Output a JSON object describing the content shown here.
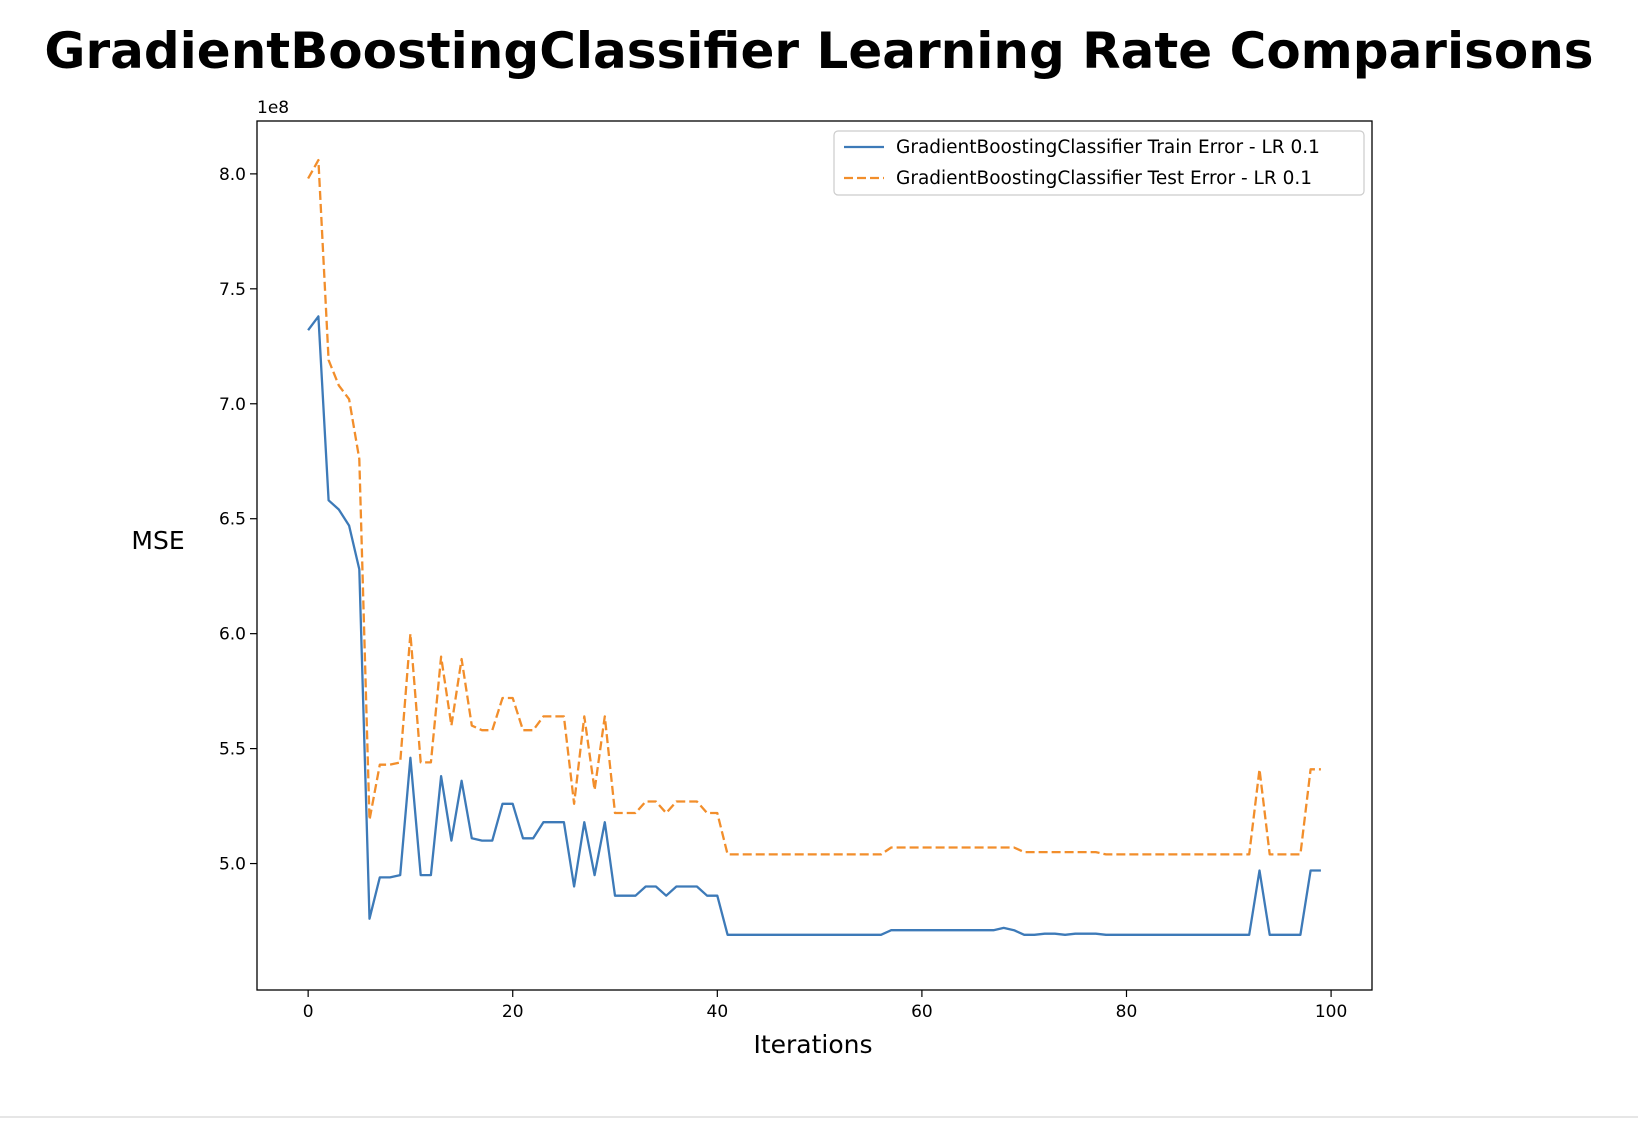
{
  "chart_data": {
    "type": "line",
    "title": "GradientBoostingClassifier Learning Rate Comparisons",
    "xlabel": "Iterations",
    "ylabel": "MSE",
    "y_offset_label": "1e8",
    "xlim": [
      -5,
      104
    ],
    "ylim": [
      4.45,
      8.23
    ],
    "x_ticks": [
      0,
      20,
      40,
      60,
      80,
      100
    ],
    "x_tick_labels": [
      "0",
      "20",
      "40",
      "60",
      "80",
      "100"
    ],
    "y_ticks": [
      5.0,
      5.5,
      6.0,
      6.5,
      7.0,
      7.5,
      8.0
    ],
    "y_tick_labels": [
      "5.0",
      "5.5",
      "6.0",
      "6.5",
      "7.0",
      "7.5",
      "8.0"
    ],
    "grid": false,
    "legend_position": "top-right",
    "series": [
      {
        "name": "GradientBoostingClassifier Train Error - LR 0.1",
        "color": "#3d7ab8",
        "dash": "solid",
        "x": [
          0,
          1,
          2,
          3,
          4,
          5,
          6,
          7,
          8,
          9,
          10,
          11,
          12,
          13,
          14,
          15,
          16,
          17,
          18,
          19,
          20,
          21,
          22,
          23,
          24,
          25,
          26,
          27,
          28,
          29,
          30,
          31,
          32,
          33,
          34,
          35,
          36,
          37,
          38,
          39,
          40,
          41,
          42,
          43,
          44,
          45,
          46,
          47,
          48,
          49,
          50,
          51,
          52,
          53,
          54,
          55,
          56,
          57,
          58,
          59,
          60,
          61,
          62,
          63,
          64,
          65,
          66,
          67,
          68,
          69,
          70,
          71,
          72,
          73,
          74,
          75,
          76,
          77,
          78,
          79,
          80,
          81,
          82,
          83,
          84,
          85,
          86,
          87,
          88,
          89,
          90,
          91,
          92,
          93,
          94,
          95,
          96,
          97,
          98,
          99
        ],
        "values": [
          7.32,
          7.38,
          6.58,
          6.54,
          6.47,
          6.28,
          4.76,
          4.94,
          4.94,
          4.95,
          5.46,
          4.95,
          4.95,
          5.38,
          5.1,
          5.36,
          5.11,
          5.1,
          5.1,
          5.26,
          5.26,
          5.11,
          5.11,
          5.18,
          5.18,
          5.18,
          4.9,
          5.18,
          4.95,
          5.18,
          4.86,
          4.86,
          4.86,
          4.9,
          4.9,
          4.86,
          4.9,
          4.9,
          4.9,
          4.86,
          4.86,
          4.69,
          4.69,
          4.69,
          4.69,
          4.69,
          4.69,
          4.69,
          4.69,
          4.69,
          4.69,
          4.69,
          4.69,
          4.69,
          4.69,
          4.69,
          4.69,
          4.71,
          4.71,
          4.71,
          4.71,
          4.71,
          4.71,
          4.71,
          4.71,
          4.71,
          4.71,
          4.71,
          4.72,
          4.71,
          4.69,
          4.69,
          4.695,
          4.695,
          4.69,
          4.695,
          4.695,
          4.695,
          4.69,
          4.69,
          4.69,
          4.69,
          4.69,
          4.69,
          4.69,
          4.69,
          4.69,
          4.69,
          4.69,
          4.69,
          4.69,
          4.69,
          4.69,
          4.97,
          4.69,
          4.69,
          4.69,
          4.69,
          4.97,
          4.97
        ]
      },
      {
        "name": "GradientBoostingClassifier Test Error - LR 0.1",
        "color": "#f28e2b",
        "dash": "dashed",
        "x": [
          0,
          1,
          2,
          3,
          4,
          5,
          6,
          7,
          8,
          9,
          10,
          11,
          12,
          13,
          14,
          15,
          16,
          17,
          18,
          19,
          20,
          21,
          22,
          23,
          24,
          25,
          26,
          27,
          28,
          29,
          30,
          31,
          32,
          33,
          34,
          35,
          36,
          37,
          38,
          39,
          40,
          41,
          42,
          43,
          44,
          45,
          46,
          47,
          48,
          49,
          50,
          51,
          52,
          53,
          54,
          55,
          56,
          57,
          58,
          59,
          60,
          61,
          62,
          63,
          64,
          65,
          66,
          67,
          68,
          69,
          70,
          71,
          72,
          73,
          74,
          75,
          76,
          77,
          78,
          79,
          80,
          81,
          82,
          83,
          84,
          85,
          86,
          87,
          88,
          89,
          90,
          91,
          92,
          93,
          94,
          95,
          96,
          97,
          98,
          99
        ],
        "values": [
          7.98,
          8.06,
          7.19,
          7.08,
          7.02,
          6.76,
          5.19,
          5.43,
          5.43,
          5.44,
          6.0,
          5.44,
          5.44,
          5.9,
          5.6,
          5.89,
          5.6,
          5.58,
          5.58,
          5.72,
          5.72,
          5.58,
          5.58,
          5.64,
          5.64,
          5.64,
          5.26,
          5.64,
          5.32,
          5.64,
          5.22,
          5.22,
          5.22,
          5.27,
          5.27,
          5.22,
          5.27,
          5.27,
          5.27,
          5.22,
          5.22,
          5.04,
          5.04,
          5.04,
          5.04,
          5.04,
          5.04,
          5.04,
          5.04,
          5.04,
          5.04,
          5.04,
          5.04,
          5.04,
          5.04,
          5.04,
          5.04,
          5.07,
          5.07,
          5.07,
          5.07,
          5.07,
          5.07,
          5.07,
          5.07,
          5.07,
          5.07,
          5.07,
          5.07,
          5.07,
          5.05,
          5.05,
          5.05,
          5.05,
          5.05,
          5.05,
          5.05,
          5.05,
          5.04,
          5.04,
          5.04,
          5.04,
          5.04,
          5.04,
          5.04,
          5.04,
          5.04,
          5.04,
          5.04,
          5.04,
          5.04,
          5.04,
          5.04,
          5.41,
          5.04,
          5.04,
          5.04,
          5.04,
          5.41,
          5.41
        ]
      }
    ]
  }
}
